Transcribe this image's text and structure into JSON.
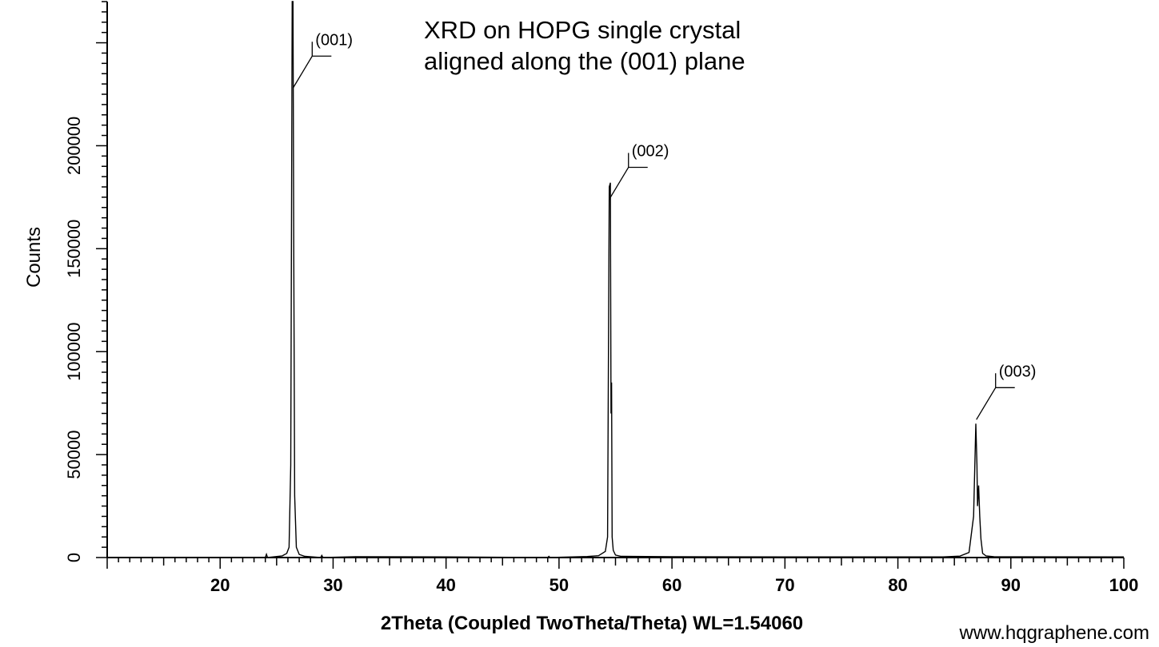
{
  "chart_data": {
    "type": "line",
    "title_lines": [
      "XRD on HOPG single crystal",
      "aligned along the (001) plane"
    ],
    "xlabel": "2Theta (Coupled TwoTheta/Theta) WL=1.54060",
    "ylabel": "Counts",
    "xlim": [
      10,
      100
    ],
    "ylim": [
      0,
      270000
    ],
    "x_ticks": [
      "20",
      "30",
      "40",
      "50",
      "60",
      "70",
      "80",
      "90",
      "100"
    ],
    "y_ticks": [
      "0",
      "50000",
      "100000",
      "150000",
      "200000"
    ],
    "series": [
      {
        "color": "#000000",
        "x": [
          10,
          24.0,
          24.1,
          24.2,
          25.5,
          25.9,
          26.1,
          26.25,
          26.38,
          26.45,
          26.52,
          26.6,
          26.75,
          27.0,
          27.5,
          28.9,
          29.0,
          29.1,
          32,
          40,
          49.0,
          49.1,
          49.2,
          52.5,
          53.5,
          54.1,
          54.3,
          54.45,
          54.55,
          54.6,
          54.65,
          54.7,
          54.8,
          55.0,
          55.5,
          60,
          70,
          84.0,
          85.5,
          86.3,
          86.7,
          86.9,
          87.0,
          87.05,
          87.15,
          87.25,
          87.35,
          87.5,
          87.8,
          88.5,
          100
        ],
        "y": [
          0,
          0,
          1600,
          0,
          800,
          2000,
          5000,
          45000,
          270000,
          270000,
          145000,
          30000,
          5000,
          1500,
          600,
          0,
          1000,
          0,
          400,
          300,
          0,
          600,
          0,
          500,
          900,
          3000,
          10000,
          180000,
          182000,
          70000,
          85000,
          10000,
          3500,
          1200,
          600,
          400,
          300,
          300,
          700,
          2500,
          20000,
          65000,
          45000,
          25000,
          35000,
          20000,
          9000,
          2000,
          800,
          400,
          300
        ]
      }
    ],
    "annotations": [
      {
        "text": "(001)",
        "x": 26.45,
        "y": 228000
      },
      {
        "text": "(002)",
        "x": 54.45,
        "y": 174000
      },
      {
        "text": "(003)",
        "x": 86.95,
        "y": 67000
      }
    ],
    "grid": false,
    "legend": "none"
  },
  "source_text": "www.hqgraphene.com"
}
